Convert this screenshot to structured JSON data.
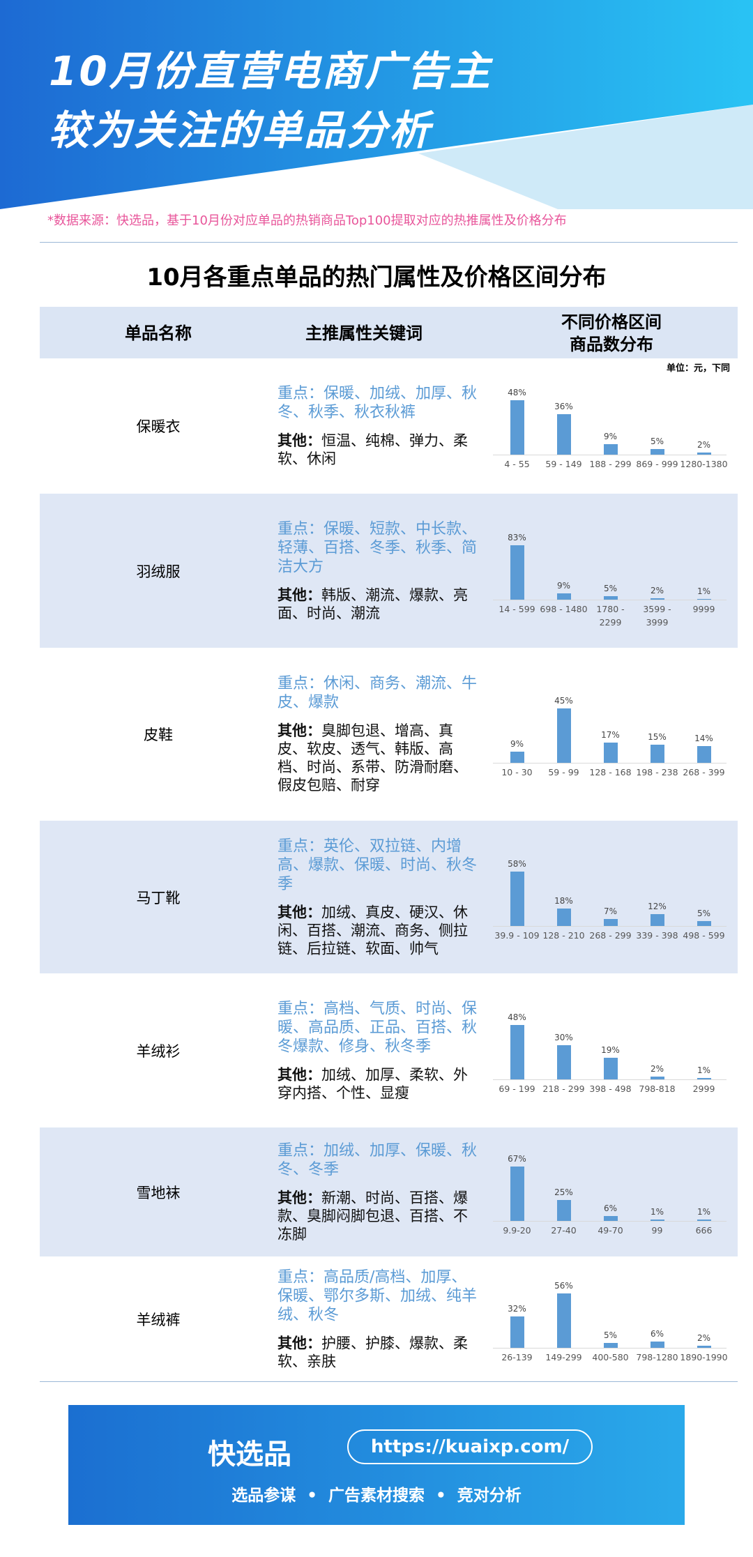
{
  "header": {
    "title_lines": [
      "10月份直营电商广告主",
      "较为关注的单品分析"
    ]
  },
  "source_note": "*数据来源：快选品，基于10月份对应单品的热销商品Top100提取对应的热推属性及价格分布",
  "table": {
    "title": "10月各重点单品的热门属性及价格区间分布",
    "columns": [
      "单品名称",
      "主推属性关键词",
      [
        "不同价格区间",
        "商品数分布"
      ]
    ],
    "unit_note": "单位：元，下同",
    "rows": [
      {
        "name": "保暖衣",
        "key_text": "重点：保暖、加绒、加厚、秋冬、秋季、秋衣秋裤",
        "other_label": "其他：",
        "other_text": "恒温、纯棉、弹力、柔软、休闲",
        "chart": {
          "type": "bar",
          "categories": [
            "4 - 55",
            "59 - 149",
            "188 - 299",
            "869 - 999",
            "1280-1380"
          ],
          "values": [
            48,
            36,
            9,
            5,
            2
          ],
          "value_labels": [
            "48%",
            "36%",
            "9%",
            "5%",
            "2%"
          ]
        }
      },
      {
        "name": "羽绒服",
        "key_text": "重点：保暖、短款、中长款、轻薄、百搭、冬季、秋季、简洁大方",
        "other_label": "其他：",
        "other_text": "韩版、潮流、爆款、亮面、时尚、潮流",
        "chart": {
          "type": "bar",
          "categories": [
            "14 - 599",
            "698 - 1480",
            "1780 - 2299",
            "3599 - 3999",
            "9999"
          ],
          "values": [
            83,
            9,
            5,
            2,
            1
          ],
          "value_labels": [
            "83%",
            "9%",
            "5%",
            "2%",
            "1%"
          ]
        }
      },
      {
        "name": "皮鞋",
        "key_text": "重点：休闲、商务、潮流、牛皮、爆款",
        "other_label": "其他：",
        "other_text": "臭脚包退、增高、真皮、软皮、透气、韩版、高档、时尚、系带、防滑耐磨、假皮包赔、耐穿",
        "chart": {
          "type": "bar",
          "categories": [
            "10 - 30",
            "59 - 99",
            "128 - 168",
            "198 - 238",
            "268 - 399"
          ],
          "values": [
            9,
            45,
            17,
            15,
            14
          ],
          "value_labels": [
            "9%",
            "45%",
            "17%",
            "15%",
            "14%"
          ]
        }
      },
      {
        "name": "马丁靴",
        "key_text": "重点：英伦、双拉链、内增高、爆款、保暖、时尚、秋冬季",
        "other_label": "其他：",
        "other_text": "加绒、真皮、硬汉、休闲、百搭、潮流、商务、侧拉链、后拉链、软面、帅气",
        "chart": {
          "type": "bar",
          "categories": [
            "39.9 - 109",
            "128 - 210",
            "268 - 299",
            "339 - 398",
            "498 - 599"
          ],
          "values": [
            58,
            18,
            7,
            12,
            5
          ],
          "value_labels": [
            "58%",
            "18%",
            "7%",
            "12%",
            "5%"
          ]
        }
      },
      {
        "name": "羊绒衫",
        "key_text": "重点：高档、气质、时尚、保暖、高品质、正品、百搭、秋冬爆款、修身、秋冬季",
        "other_label": "其他：",
        "other_text": "加绒、加厚、柔软、外穿内搭、个性、显瘦",
        "chart": {
          "type": "bar",
          "categories": [
            "69 - 199",
            "218 - 299",
            "398 - 498",
            "798-818",
            "2999"
          ],
          "values": [
            48,
            30,
            19,
            2,
            1
          ],
          "value_labels": [
            "48%",
            "30%",
            "19%",
            "2%",
            "1%"
          ]
        }
      },
      {
        "name": "雪地袜",
        "key_text": "重点：加绒、加厚、保暖、秋冬、冬季",
        "other_label": "其他：",
        "other_text": "新潮、时尚、百搭、爆款、臭脚闷脚包退、百搭、不冻脚",
        "chart": {
          "type": "bar",
          "categories": [
            "9.9-20",
            "27-40",
            "49-70",
            "99",
            "666"
          ],
          "values": [
            67,
            25,
            6,
            1,
            1
          ],
          "value_labels": [
            "67%",
            "25%",
            "6%",
            "1%",
            "1%"
          ]
        }
      },
      {
        "name": "羊绒裤",
        "key_text": "重点：高品质/高档、加厚、保暖、鄂尔多斯、加绒、纯羊绒、秋冬",
        "other_label": "其他：",
        "other_text": "护腰、护膝、爆款、柔软、亲肤",
        "chart": {
          "type": "bar",
          "categories": [
            "26-139",
            "149-299",
            "400-580",
            "798-1280",
            "1890-1990"
          ],
          "values": [
            32,
            56,
            5,
            6,
            2
          ],
          "value_labels": [
            "32%",
            "56%",
            "5%",
            "6%",
            "2%"
          ]
        }
      }
    ]
  },
  "footer": {
    "brand": "快选品",
    "url": "https://kuaixp.com/",
    "services": [
      "选品参谋",
      "广告素材搜索",
      "竞对分析"
    ]
  }
}
